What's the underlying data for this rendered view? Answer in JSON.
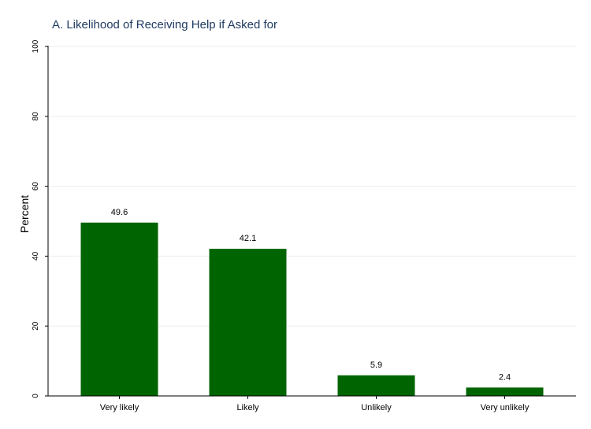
{
  "chart_data": {
    "type": "bar",
    "title": "A. Likelihood of Receiving Help if Asked for",
    "xlabel": "",
    "ylabel": "Percent",
    "categories": [
      "Very likely",
      "Likely",
      "Unlikely",
      "Very unlikely"
    ],
    "values": [
      49.6,
      42.1,
      5.9,
      2.4
    ],
    "value_labels": [
      "49.6",
      "42.1",
      "5.9",
      "2.4"
    ],
    "ylim": [
      0,
      100
    ],
    "yticks": [
      0,
      20,
      40,
      60,
      80,
      100
    ],
    "grid": true,
    "bar_color": "#006400"
  }
}
